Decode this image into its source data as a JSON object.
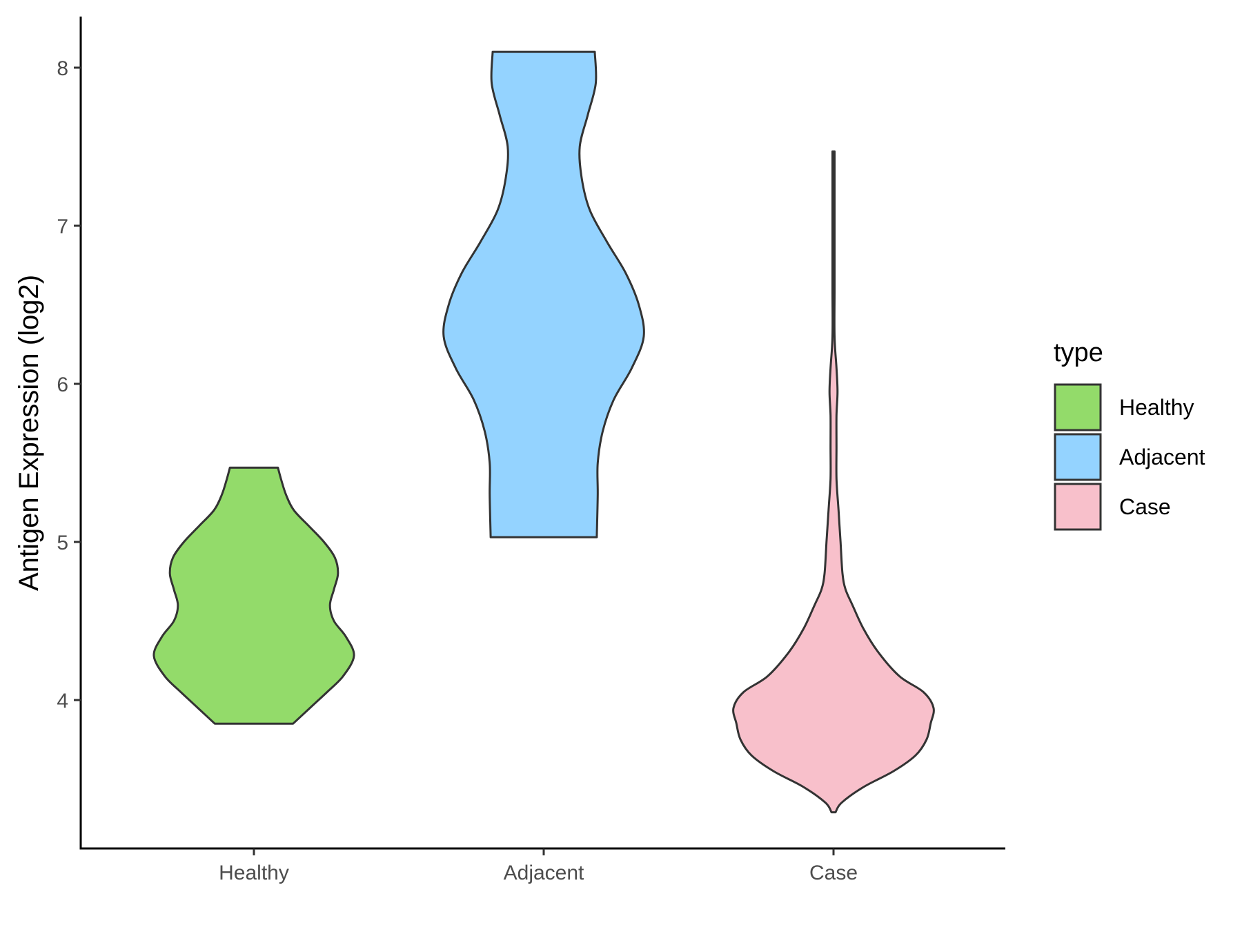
{
  "chart_data": {
    "type": "violin",
    "title": "",
    "xlabel": "",
    "ylabel": "Antigen Expression (log2)",
    "ylim": [
      3.1,
      8.35
    ],
    "yticks": [
      4,
      5,
      6,
      7,
      8
    ],
    "categories": [
      "Healthy",
      "Adjacent",
      "Case"
    ],
    "grid": false,
    "legend": {
      "title": "type",
      "position": "right",
      "entries": [
        "Healthy",
        "Adjacent",
        "Case"
      ]
    },
    "colors": {
      "Healthy": "#93db6a",
      "Adjacent": "#94d3ff",
      "Case": "#f8c0cb"
    },
    "series": [
      {
        "name": "Healthy",
        "min": 3.85,
        "max": 5.47,
        "density_profile": [
          [
            3.85,
            0.39
          ],
          [
            3.95,
            0.56
          ],
          [
            4.05,
            0.73
          ],
          [
            4.15,
            0.89
          ],
          [
            4.28,
            1.0
          ],
          [
            4.4,
            0.92
          ],
          [
            4.5,
            0.8
          ],
          [
            4.6,
            0.76
          ],
          [
            4.7,
            0.8
          ],
          [
            4.8,
            0.84
          ],
          [
            4.9,
            0.81
          ],
          [
            5.0,
            0.7
          ],
          [
            5.1,
            0.55
          ],
          [
            5.2,
            0.4
          ],
          [
            5.3,
            0.32
          ],
          [
            5.4,
            0.27
          ],
          [
            5.47,
            0.24
          ]
        ]
      },
      {
        "name": "Adjacent",
        "min": 5.03,
        "max": 8.1,
        "density_profile": [
          [
            5.03,
            0.53
          ],
          [
            5.3,
            0.54
          ],
          [
            5.5,
            0.54
          ],
          [
            5.7,
            0.59
          ],
          [
            5.9,
            0.7
          ],
          [
            6.1,
            0.88
          ],
          [
            6.3,
            1.0
          ],
          [
            6.5,
            0.95
          ],
          [
            6.7,
            0.82
          ],
          [
            6.9,
            0.63
          ],
          [
            7.1,
            0.46
          ],
          [
            7.3,
            0.38
          ],
          [
            7.5,
            0.36
          ],
          [
            7.7,
            0.44
          ],
          [
            7.9,
            0.52
          ],
          [
            8.1,
            0.51
          ]
        ]
      },
      {
        "name": "Case",
        "min": 3.29,
        "max": 7.47,
        "density_profile": [
          [
            3.29,
            0.02
          ],
          [
            3.35,
            0.08
          ],
          [
            3.45,
            0.3
          ],
          [
            3.55,
            0.6
          ],
          [
            3.65,
            0.82
          ],
          [
            3.75,
            0.93
          ],
          [
            3.85,
            0.97
          ],
          [
            3.95,
            1.0
          ],
          [
            4.05,
            0.9
          ],
          [
            4.15,
            0.66
          ],
          [
            4.3,
            0.45
          ],
          [
            4.45,
            0.3
          ],
          [
            4.6,
            0.19
          ],
          [
            4.7,
            0.12
          ],
          [
            4.8,
            0.09
          ],
          [
            5.0,
            0.07
          ],
          [
            5.2,
            0.05
          ],
          [
            5.4,
            0.03
          ],
          [
            5.6,
            0.03
          ],
          [
            5.8,
            0.03
          ],
          [
            5.95,
            0.04
          ],
          [
            6.1,
            0.03
          ],
          [
            6.3,
            0.01
          ],
          [
            6.6,
            0.01
          ],
          [
            7.0,
            0.01
          ],
          [
            7.47,
            0.01
          ]
        ]
      }
    ]
  }
}
